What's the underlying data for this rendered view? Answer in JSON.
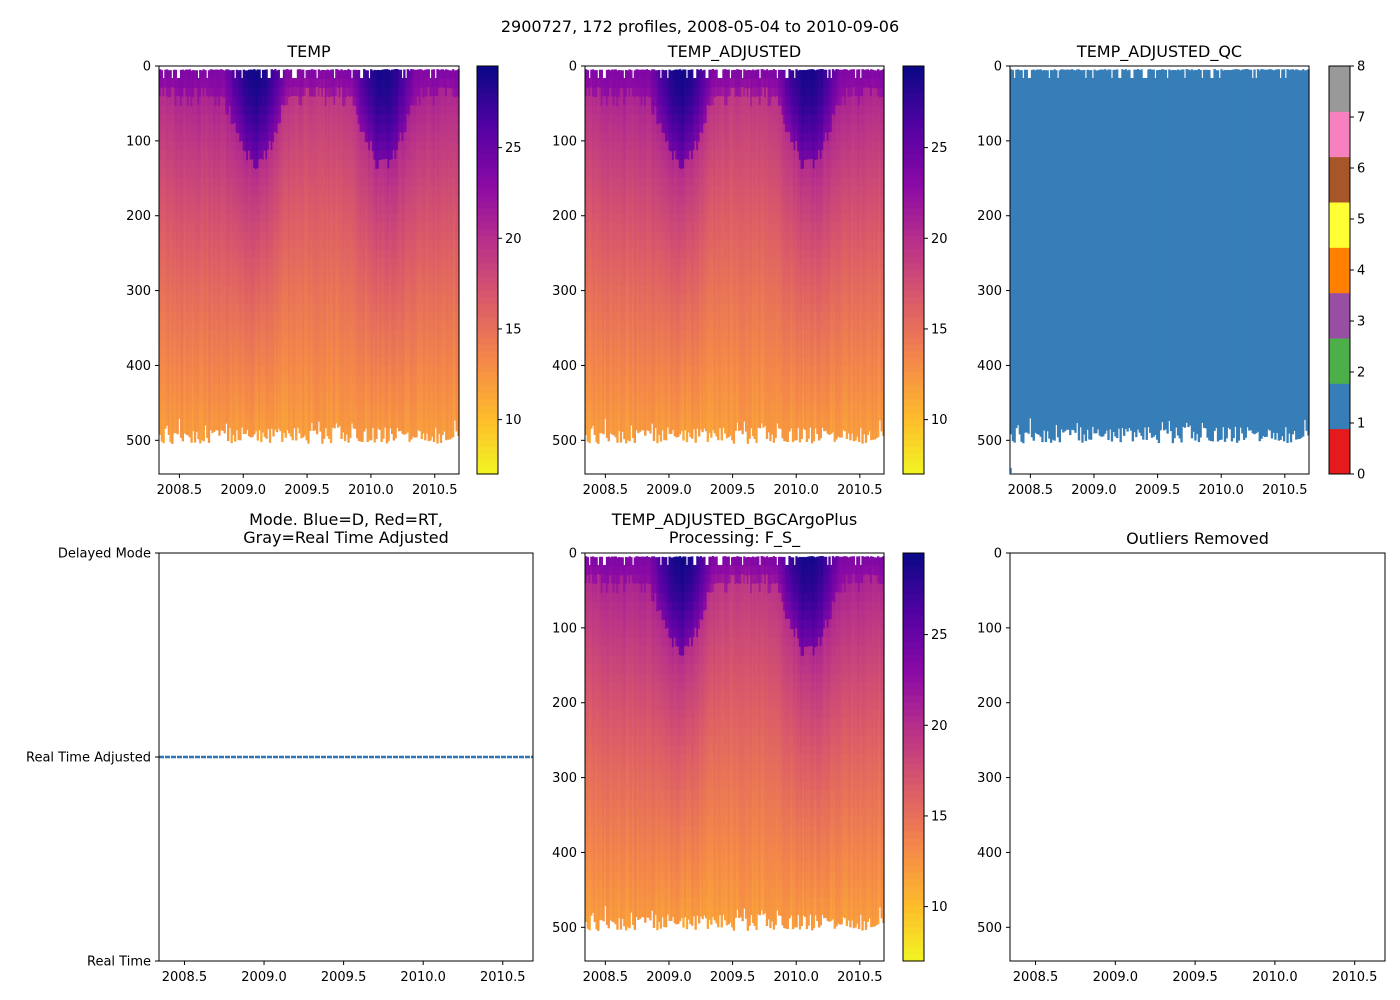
{
  "figure": {
    "suptitle": "2900727, 172 profiles, 2008-05-04 to 2010-09-06",
    "colors": {
      "qc_fill": "#3a7ab8",
      "mode_line": "#2d75b5",
      "axis": "#000000",
      "background": "#ffffff"
    },
    "colormap": "plasma_r"
  },
  "chart_data": [
    {
      "id": "temp",
      "type": "heatmap",
      "title": "TEMP",
      "xlim": [
        2008.34,
        2010.69
      ],
      "ylim": [
        545,
        0
      ],
      "xticks": [
        "2008.5",
        "2009.0",
        "2009.5",
        "2010.0",
        "2010.5"
      ],
      "xtick_values": [
        2008.5,
        2009.0,
        2009.5,
        2010.0,
        2010.5
      ],
      "yticks": [
        "0",
        "100",
        "200",
        "300",
        "400",
        "500"
      ],
      "ytick_values": [
        0,
        100,
        200,
        300,
        400,
        500
      ],
      "colorbar": {
        "range": [
          7,
          29.5
        ],
        "ticks": [
          "10",
          "15",
          "20",
          "25"
        ],
        "tick_values": [
          10,
          15,
          20,
          25
        ]
      },
      "profiles": 172,
      "surface_temp_range": [
        24,
        29
      ],
      "bottom_temp_approx": 11,
      "bottom_depth_approx": 495
    },
    {
      "id": "temp_adjusted",
      "type": "heatmap",
      "title": "TEMP_ADJUSTED",
      "xlim": [
        2008.34,
        2010.69
      ],
      "ylim": [
        545,
        0
      ],
      "xticks": [
        "2008.5",
        "2009.0",
        "2009.5",
        "2010.0",
        "2010.5"
      ],
      "xtick_values": [
        2008.5,
        2009.0,
        2009.5,
        2010.0,
        2010.5
      ],
      "yticks": [
        "0",
        "100",
        "200",
        "300",
        "400",
        "500"
      ],
      "ytick_values": [
        0,
        100,
        200,
        300,
        400,
        500
      ],
      "colorbar": {
        "range": [
          7,
          29.5
        ],
        "ticks": [
          "10",
          "15",
          "20",
          "25"
        ],
        "tick_values": [
          10,
          15,
          20,
          25
        ]
      }
    },
    {
      "id": "temp_adjusted_qc",
      "type": "heatmap",
      "title": "TEMP_ADJUSTED_QC",
      "xlim": [
        2008.34,
        2010.69
      ],
      "ylim": [
        545,
        0
      ],
      "xticks": [
        "2008.5",
        "2009.0",
        "2009.5",
        "2010.0",
        "2010.5"
      ],
      "xtick_values": [
        2008.5,
        2009.0,
        2009.5,
        2010.0,
        2010.5
      ],
      "yticks": [
        "0",
        "100",
        "200",
        "300",
        "400",
        "500"
      ],
      "ytick_values": [
        0,
        100,
        200,
        300,
        400,
        500
      ],
      "qc_value_everywhere": 1,
      "colorbar": {
        "range": [
          0,
          8
        ],
        "ticks": [
          "0",
          "1",
          "2",
          "3",
          "4",
          "5",
          "6",
          "7",
          "8"
        ],
        "tick_values": [
          0,
          1,
          2,
          3,
          4,
          5,
          6,
          7,
          8
        ],
        "colors": [
          "#e41a1c",
          "#377eb8",
          "#4daf4a",
          "#984ea3",
          "#ff7f00",
          "#ffff33",
          "#a65628",
          "#f781bf",
          "#999999"
        ]
      }
    },
    {
      "id": "mode",
      "type": "line",
      "title_lines": [
        "Mode. Blue=D, Red=RT,",
        "Gray=Real Time Adjusted"
      ],
      "xlim": [
        2008.34,
        2010.69
      ],
      "xticks": [
        "2008.5",
        "2009.0",
        "2009.5",
        "2010.0",
        "2010.5"
      ],
      "xtick_values": [
        2008.5,
        2009.0,
        2009.5,
        2010.0,
        2010.5
      ],
      "ylim": [
        0,
        2
      ],
      "yticks": [
        "Delayed Mode",
        "Real Time Adjusted",
        "Real Time"
      ],
      "ytick_values": [
        2,
        1,
        0
      ],
      "series": [
        {
          "name": "mode",
          "constant_value": 1,
          "x_range": [
            2008.34,
            2010.69
          ]
        }
      ]
    },
    {
      "id": "temp_bgc",
      "type": "heatmap",
      "title_lines": [
        "TEMP_ADJUSTED_BGCArgoPlus",
        "Processing: F_S_"
      ],
      "xlim": [
        2008.34,
        2010.69
      ],
      "ylim": [
        545,
        0
      ],
      "xticks": [
        "2008.5",
        "2009.0",
        "2009.5",
        "2010.0",
        "2010.5"
      ],
      "xtick_values": [
        2008.5,
        2009.0,
        2009.5,
        2010.0,
        2010.5
      ],
      "yticks": [
        "0",
        "100",
        "200",
        "300",
        "400",
        "500"
      ],
      "ytick_values": [
        0,
        100,
        200,
        300,
        400,
        500
      ],
      "colorbar": {
        "range": [
          7,
          29.5
        ],
        "ticks": [
          "10",
          "15",
          "20",
          "25"
        ],
        "tick_values": [
          10,
          15,
          20,
          25
        ]
      }
    },
    {
      "id": "outliers",
      "type": "scatter",
      "title": "Outliers Removed",
      "xlim": [
        2008.34,
        2010.69
      ],
      "ylim": [
        545,
        0
      ],
      "xticks": [
        "2008.5",
        "2009.0",
        "2009.5",
        "2010.0",
        "2010.5"
      ],
      "xtick_values": [
        2008.5,
        2009.0,
        2009.5,
        2010.0,
        2010.5
      ],
      "yticks": [
        "0",
        "100",
        "200",
        "300",
        "400",
        "500"
      ],
      "ytick_values": [
        0,
        100,
        200,
        300,
        400,
        500
      ],
      "points": []
    }
  ]
}
